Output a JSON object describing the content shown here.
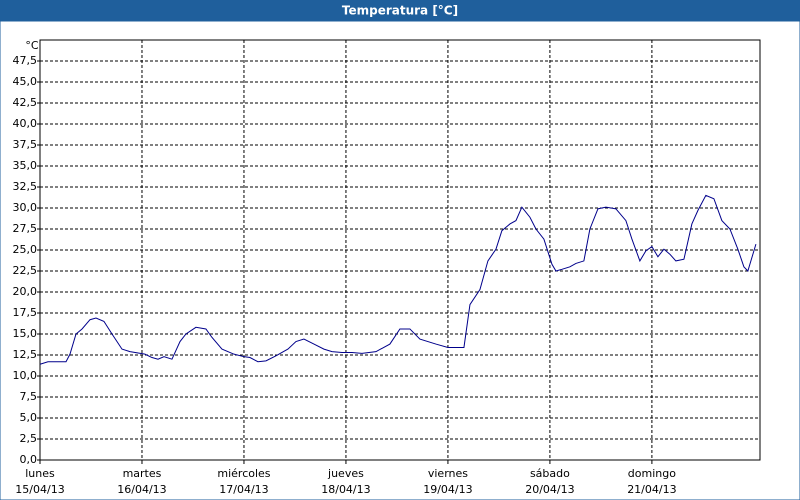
{
  "chart_data": {
    "type": "line",
    "title": "Temperatura [°C]",
    "y_unit": "°C",
    "x": [
      0,
      0.078,
      0.176,
      0.255,
      0.294,
      0.353,
      0.412,
      0.49,
      0.549,
      0.627,
      0.706,
      0.804,
      0.882,
      1.029,
      1.098,
      1.157,
      1.216,
      1.294,
      1.373,
      1.431,
      1.529,
      1.627,
      1.686,
      1.784,
      1.902,
      2.0,
      2.059,
      2.137,
      2.216,
      2.314,
      2.431,
      2.51,
      2.588,
      2.686,
      2.784,
      2.863,
      2.961,
      3.059,
      3.157,
      3.294,
      3.431,
      3.529,
      3.627,
      3.725,
      3.882,
      4.0,
      4.098,
      4.157,
      4.216,
      4.314,
      4.392,
      4.471,
      4.529,
      4.608,
      4.667,
      4.725,
      4.804,
      4.863,
      4.941,
      5.02,
      5.059,
      5.118,
      5.196,
      5.255,
      5.333,
      5.392,
      5.471,
      5.549,
      5.647,
      5.745,
      5.804,
      5.882,
      5.941,
      6.0,
      6.059,
      6.118,
      6.176,
      6.235,
      6.314,
      6.392,
      6.451,
      6.529,
      6.608,
      6.686,
      6.765,
      6.843,
      6.902,
      6.941,
      7.02
    ],
    "series": [
      {
        "color": "#00008b",
        "values": [
          11.4,
          11.7,
          11.7,
          11.7,
          12.6,
          15.0,
          15.6,
          16.7,
          16.9,
          16.5,
          15.0,
          13.2,
          12.9,
          12.6,
          12.2,
          12.0,
          12.3,
          12.0,
          14.1,
          15.0,
          15.8,
          15.6,
          14.6,
          13.2,
          12.6,
          12.3,
          12.2,
          11.7,
          11.8,
          12.4,
          13.2,
          14.1,
          14.4,
          13.8,
          13.2,
          12.9,
          12.8,
          12.8,
          12.7,
          12.9,
          13.8,
          15.6,
          15.6,
          14.4,
          13.8,
          13.4,
          13.4,
          13.4,
          18.5,
          20.3,
          23.7,
          25.1,
          27.3,
          28.1,
          28.5,
          30.1,
          28.9,
          27.5,
          26.3,
          23.3,
          22.5,
          22.7,
          23.0,
          23.4,
          23.7,
          27.5,
          29.9,
          30.1,
          29.9,
          28.5,
          26.3,
          23.7,
          24.9,
          25.4,
          24.2,
          25.1,
          24.5,
          23.7,
          23.9,
          28.1,
          29.7,
          31.5,
          31.1,
          28.5,
          27.5,
          25.1,
          23.0,
          22.5,
          25.7
        ]
      }
    ],
    "xlim": [
      0,
      7.06
    ],
    "xticks": [
      {
        "value": 0,
        "label": "lunes"
      },
      {
        "value": 1,
        "label": "martes"
      },
      {
        "value": 2,
        "label": "miércoles"
      },
      {
        "value": 3,
        "label": "jueves"
      },
      {
        "value": 4,
        "label": "viernes"
      },
      {
        "value": 5,
        "label": "sábado"
      },
      {
        "value": 6,
        "label": "domingo"
      }
    ],
    "xtick_dates": [
      "15/04/13",
      "16/04/13",
      "17/04/13",
      "18/04/13",
      "19/04/13",
      "20/04/13",
      "21/04/13"
    ],
    "ylim": [
      0,
      50
    ],
    "yticks": [
      {
        "value": 0,
        "label": "0,0"
      },
      {
        "value": 2.5,
        "label": "2,5"
      },
      {
        "value": 5,
        "label": "5,0"
      },
      {
        "value": 7.5,
        "label": "7,5"
      },
      {
        "value": 10,
        "label": "10,0"
      },
      {
        "value": 12.5,
        "label": "12,5"
      },
      {
        "value": 15,
        "label": "15,0"
      },
      {
        "value": 17.5,
        "label": "17,5"
      },
      {
        "value": 20,
        "label": "20,0"
      },
      {
        "value": 22.5,
        "label": "22,5"
      },
      {
        "value": 25,
        "label": "25,0"
      },
      {
        "value": 27.5,
        "label": "27,5"
      },
      {
        "value": 30,
        "label": "30,0"
      },
      {
        "value": 32.5,
        "label": "32,5"
      },
      {
        "value": 35,
        "label": "35,0"
      },
      {
        "value": 37.5,
        "label": "37,5"
      },
      {
        "value": 40,
        "label": "40,0"
      },
      {
        "value": 42.5,
        "label": "42,5"
      },
      {
        "value": 45,
        "label": "45,0"
      },
      {
        "value": 47.5,
        "label": "47,5"
      }
    ],
    "grid": true
  }
}
